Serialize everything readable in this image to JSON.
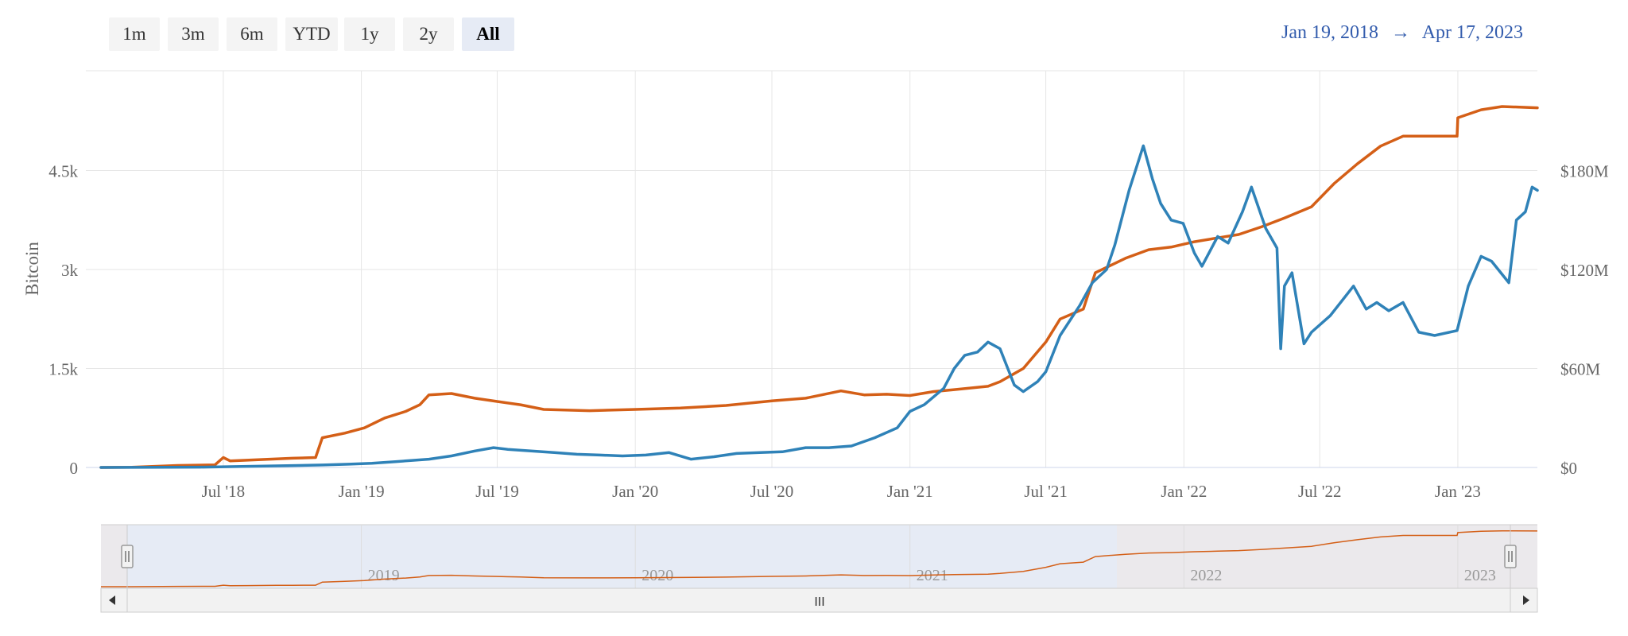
{
  "range_selector": {
    "buttons": [
      "1m",
      "3m",
      "6m",
      "YTD",
      "1y",
      "2y",
      "All"
    ],
    "active": "All"
  },
  "date_range": {
    "from": "Jan 19, 2018",
    "arrow": "→",
    "to": "Apr 17, 2023"
  },
  "colors": {
    "bitcoin": "#d45f17",
    "usd": "#2f82b8",
    "navigator_fill": "#e6ebf5",
    "navigator_outside": "#ebe9ec"
  },
  "chart_data": {
    "type": "line",
    "title": "",
    "x_range": [
      "2018-01-19",
      "2023-04-17"
    ],
    "x_ticks": [
      "Jul '18",
      "Jan '19",
      "Jul '19",
      "Jan '20",
      "Jul '20",
      "Jan '21",
      "Jul '21",
      "Jan '22",
      "Jul '22",
      "Jan '23"
    ],
    "y_left": {
      "label": "Bitcoin",
      "ticks": [
        "0",
        "1.5k",
        "3k",
        "4.5k"
      ],
      "range": [
        0,
        6000
      ]
    },
    "y_right": {
      "label": "",
      "ticks": [
        "$0",
        "$60M",
        "$120M",
        "$180M"
      ],
      "range": [
        0,
        240000000
      ]
    },
    "grid": true,
    "series": [
      {
        "axis": "left",
        "color": "#d45f17",
        "points": [
          [
            "2018-01-19",
            0
          ],
          [
            "2018-03-01",
            3
          ],
          [
            "2018-05-01",
            30
          ],
          [
            "2018-06-20",
            40
          ],
          [
            "2018-07-01",
            150
          ],
          [
            "2018-07-10",
            100
          ],
          [
            "2018-08-01",
            110
          ],
          [
            "2018-09-10",
            130
          ],
          [
            "2018-10-01",
            140
          ],
          [
            "2018-11-01",
            150
          ],
          [
            "2018-11-10",
            450
          ],
          [
            "2018-12-10",
            520
          ],
          [
            "2019-01-05",
            600
          ],
          [
            "2019-02-01",
            750
          ],
          [
            "2019-03-01",
            850
          ],
          [
            "2019-03-20",
            950
          ],
          [
            "2019-04-01",
            1100
          ],
          [
            "2019-05-01",
            1120
          ],
          [
            "2019-06-01",
            1050
          ],
          [
            "2019-07-01",
            1000
          ],
          [
            "2019-08-01",
            950
          ],
          [
            "2019-09-01",
            880
          ],
          [
            "2019-11-01",
            860
          ],
          [
            "2020-01-01",
            880
          ],
          [
            "2020-03-01",
            900
          ],
          [
            "2020-05-01",
            940
          ],
          [
            "2020-07-01",
            1010
          ],
          [
            "2020-08-15",
            1050
          ],
          [
            "2020-10-01",
            1160
          ],
          [
            "2020-11-01",
            1100
          ],
          [
            "2020-12-01",
            1110
          ],
          [
            "2021-01-01",
            1090
          ],
          [
            "2021-02-01",
            1150
          ],
          [
            "2021-03-01",
            1180
          ],
          [
            "2021-04-15",
            1230
          ],
          [
            "2021-05-01",
            1300
          ],
          [
            "2021-06-01",
            1500
          ],
          [
            "2021-07-01",
            1900
          ],
          [
            "2021-07-20",
            2250
          ],
          [
            "2021-08-20",
            2400
          ],
          [
            "2021-09-05",
            2950
          ],
          [
            "2021-10-15",
            3170
          ],
          [
            "2021-11-15",
            3300
          ],
          [
            "2021-12-15",
            3340
          ],
          [
            "2022-01-15",
            3420
          ],
          [
            "2022-02-15",
            3480
          ],
          [
            "2022-03-15",
            3530
          ],
          [
            "2022-04-15",
            3650
          ],
          [
            "2022-05-15",
            3780
          ],
          [
            "2022-06-20",
            3950
          ],
          [
            "2022-07-20",
            4300
          ],
          [
            "2022-08-20",
            4600
          ],
          [
            "2022-09-20",
            4870
          ],
          [
            "2022-10-20",
            5020
          ],
          [
            "2022-12-31",
            5020
          ],
          [
            "2023-01-01",
            5300
          ],
          [
            "2023-02-01",
            5420
          ],
          [
            "2023-03-01",
            5470
          ],
          [
            "2023-04-17",
            5450
          ]
        ]
      },
      {
        "axis": "right",
        "color": "#2f82b8",
        "points": [
          [
            "2018-01-19",
            0
          ],
          [
            "2018-06-01",
            200000
          ],
          [
            "2018-11-10",
            1500000
          ],
          [
            "2018-12-15",
            2000000
          ],
          [
            "2019-01-15",
            2500000
          ],
          [
            "2019-02-15",
            3500000
          ],
          [
            "2019-04-01",
            5000000
          ],
          [
            "2019-05-01",
            7000000
          ],
          [
            "2019-06-01",
            10000000
          ],
          [
            "2019-06-26",
            12000000
          ],
          [
            "2019-07-15",
            11000000
          ],
          [
            "2019-08-15",
            10000000
          ],
          [
            "2019-09-15",
            9000000
          ],
          [
            "2019-10-15",
            8000000
          ],
          [
            "2019-11-15",
            7500000
          ],
          [
            "2019-12-15",
            7000000
          ],
          [
            "2020-01-15",
            7500000
          ],
          [
            "2020-02-15",
            9000000
          ],
          [
            "2020-03-15",
            5000000
          ],
          [
            "2020-04-15",
            6500000
          ],
          [
            "2020-05-15",
            8500000
          ],
          [
            "2020-06-15",
            9000000
          ],
          [
            "2020-07-15",
            9500000
          ],
          [
            "2020-08-15",
            12000000
          ],
          [
            "2020-09-15",
            12000000
          ],
          [
            "2020-10-15",
            13000000
          ],
          [
            "2020-11-15",
            18000000
          ],
          [
            "2020-12-15",
            24000000
          ],
          [
            "2021-01-01",
            34000000
          ],
          [
            "2021-01-20",
            38000000
          ],
          [
            "2021-02-15",
            48000000
          ],
          [
            "2021-03-01",
            60000000
          ],
          [
            "2021-03-15",
            68000000
          ],
          [
            "2021-04-01",
            70000000
          ],
          [
            "2021-04-15",
            76000000
          ],
          [
            "2021-05-01",
            72000000
          ],
          [
            "2021-05-20",
            50000000
          ],
          [
            "2021-06-01",
            46000000
          ],
          [
            "2021-06-20",
            52000000
          ],
          [
            "2021-07-01",
            58000000
          ],
          [
            "2021-07-20",
            80000000
          ],
          [
            "2021-08-15",
            98000000
          ],
          [
            "2021-09-01",
            112000000
          ],
          [
            "2021-09-20",
            120000000
          ],
          [
            "2021-10-01",
            135000000
          ],
          [
            "2021-10-20",
            168000000
          ],
          [
            "2021-11-08",
            195000000
          ],
          [
            "2021-11-20",
            175000000
          ],
          [
            "2021-12-01",
            160000000
          ],
          [
            "2021-12-15",
            150000000
          ],
          [
            "2021-12-31",
            148000000
          ],
          [
            "2022-01-15",
            130000000
          ],
          [
            "2022-01-25",
            122000000
          ],
          [
            "2022-02-15",
            140000000
          ],
          [
            "2022-03-01",
            136000000
          ],
          [
            "2022-03-20",
            155000000
          ],
          [
            "2022-04-01",
            170000000
          ],
          [
            "2022-04-20",
            145000000
          ],
          [
            "2022-05-05",
            133000000
          ],
          [
            "2022-05-10",
            72000000
          ],
          [
            "2022-05-15",
            110000000
          ],
          [
            "2022-05-25",
            118000000
          ],
          [
            "2022-06-10",
            75000000
          ],
          [
            "2022-06-20",
            82000000
          ],
          [
            "2022-07-15",
            92000000
          ],
          [
            "2022-08-15",
            110000000
          ],
          [
            "2022-09-01",
            96000000
          ],
          [
            "2022-09-15",
            100000000
          ],
          [
            "2022-10-01",
            95000000
          ],
          [
            "2022-10-20",
            100000000
          ],
          [
            "2022-11-10",
            82000000
          ],
          [
            "2022-12-01",
            80000000
          ],
          [
            "2022-12-31",
            83000000
          ],
          [
            "2023-01-15",
            110000000
          ],
          [
            "2023-02-01",
            128000000
          ],
          [
            "2023-02-15",
            125000000
          ],
          [
            "2023-03-10",
            112000000
          ],
          [
            "2023-03-20",
            150000000
          ],
          [
            "2023-04-01",
            155000000
          ],
          [
            "2023-04-10",
            170000000
          ],
          [
            "2023-04-17",
            168000000
          ]
        ]
      }
    ],
    "navigator": {
      "labels": [
        "2019",
        "2020",
        "2021",
        "2022",
        "2023"
      ],
      "scrollbar_grip": "III"
    }
  }
}
